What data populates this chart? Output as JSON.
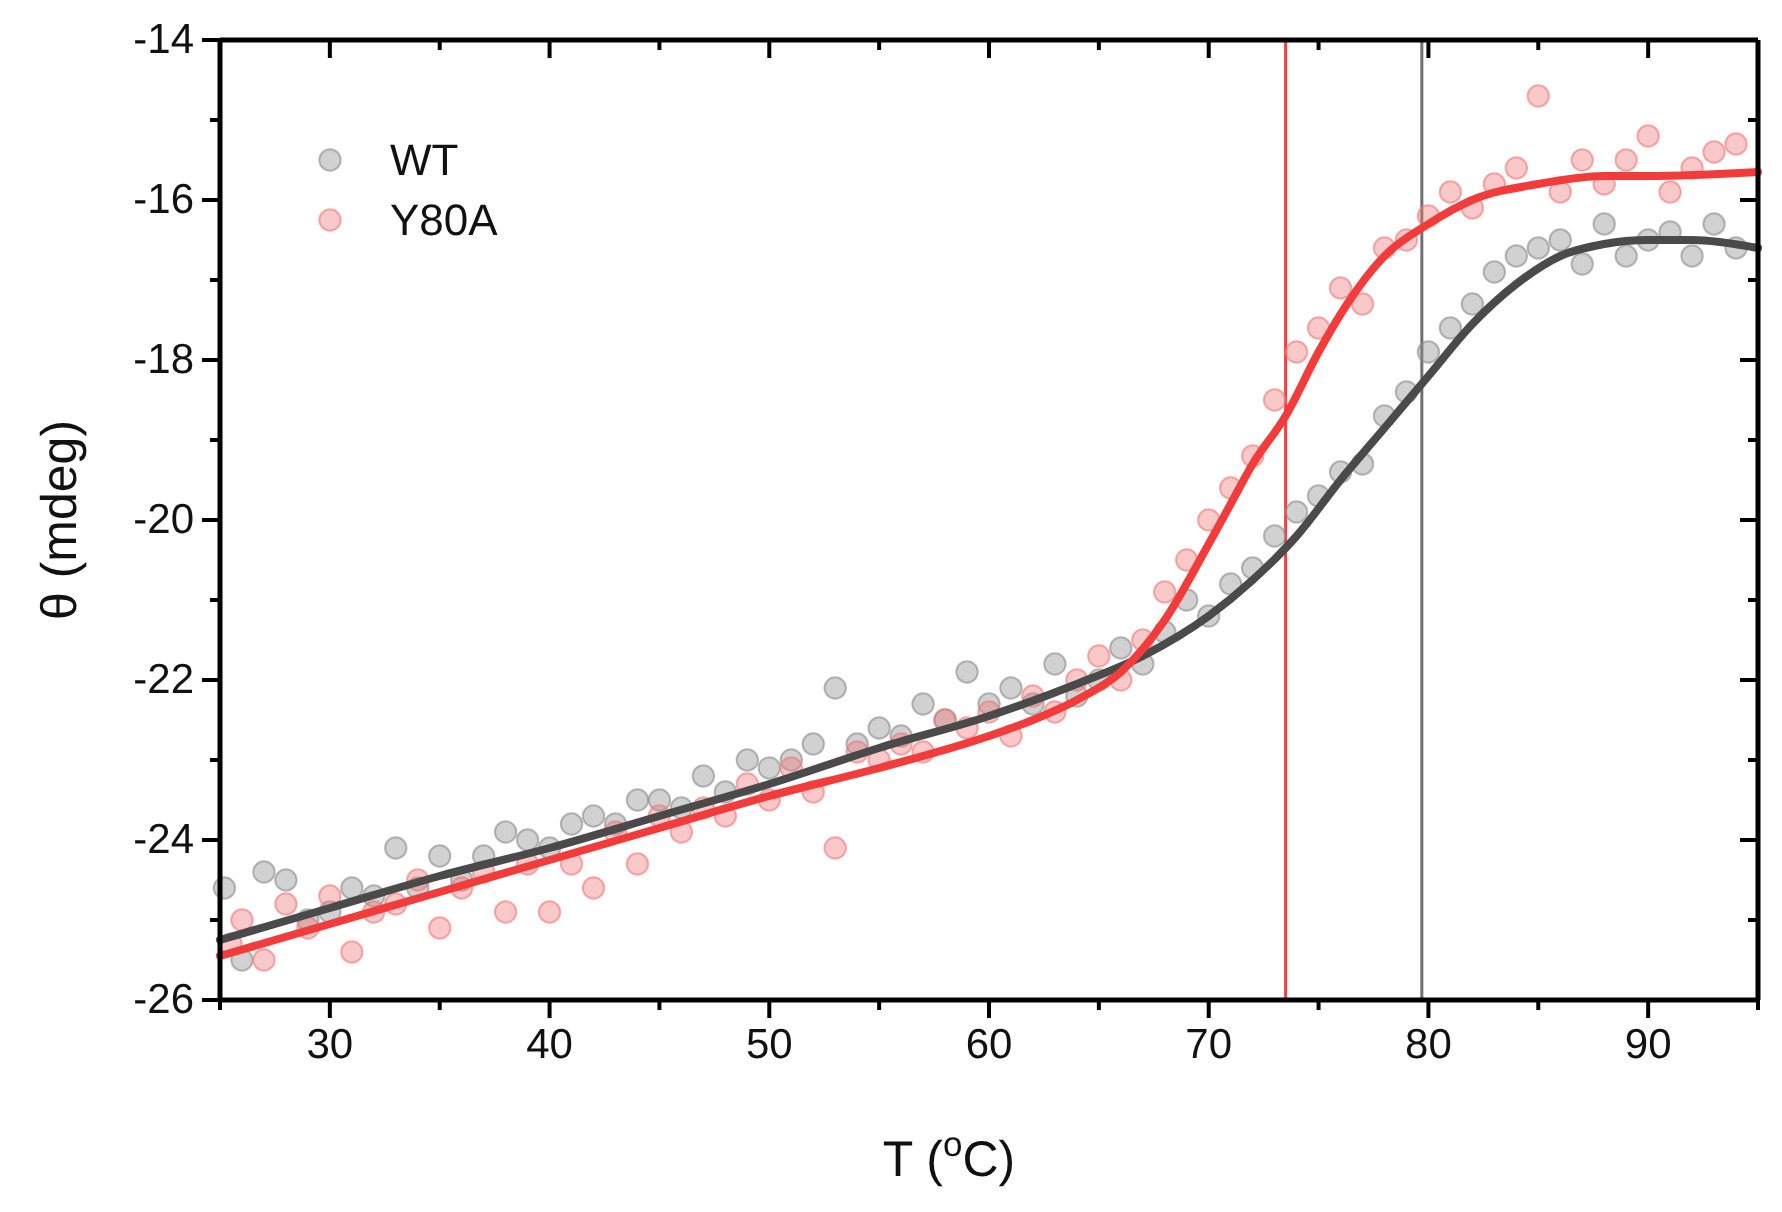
{
  "chart_data": {
    "type": "scatter",
    "xlabel": "T ($^{o}$C)",
    "ylabel": "θ (mdeg)",
    "xlim": [
      25,
      95
    ],
    "xticks": [
      {
        "value": 25,
        "label": null
      },
      30,
      {
        "value": 35,
        "label": null
      },
      40,
      {
        "value": 45,
        "label": null
      },
      50,
      {
        "value": 55,
        "label": null
      },
      60,
      {
        "value": 65,
        "label": null
      },
      70,
      {
        "value": 75,
        "label": null
      },
      80,
      {
        "value": 85,
        "label": null
      },
      90,
      {
        "value": 95,
        "label": null
      }
    ],
    "ylim": [
      -26,
      -14
    ],
    "yticks": [
      -26,
      {
        "value": -25,
        "label": null
      },
      -24,
      {
        "value": -23,
        "label": null
      },
      -22,
      {
        "value": -21,
        "label": null
      },
      -20,
      {
        "value": -19,
        "label": null
      },
      -18,
      {
        "value": -17,
        "label": null
      },
      -16,
      {
        "value": -15,
        "label": null
      },
      -14
    ],
    "legend": "top left",
    "grid": false,
    "ref_lines": [
      {
        "axis": "x",
        "value": 73.5,
        "color": "#ff3b3b"
      },
      {
        "axis": "x",
        "value": 79.7,
        "color": "#707070"
      }
    ],
    "series": [
      {
        "name": "WT",
        "marker": "circle",
        "color": "#8c8c8c",
        "x": [
          25.2,
          26,
          27,
          28,
          29,
          30,
          31,
          32,
          33,
          34,
          35,
          36,
          37,
          38,
          39,
          40,
          41,
          42,
          43,
          44,
          45,
          46,
          47,
          48,
          49,
          50,
          51,
          52,
          53,
          54,
          55,
          56,
          57,
          58,
          59,
          60,
          61,
          62,
          63,
          64,
          65,
          66,
          67,
          68,
          69,
          70,
          71,
          72,
          73,
          74,
          75,
          76,
          77,
          78,
          79,
          80,
          81,
          82,
          83,
          84,
          85,
          86,
          87,
          88,
          89,
          90,
          91,
          92,
          93,
          94
        ],
        "values": [
          -24.6,
          -25.5,
          -24.4,
          -24.5,
          -25.0,
          -24.9,
          -24.6,
          -24.7,
          -24.1,
          -24.6,
          -24.2,
          -24.5,
          -24.2,
          -23.9,
          -24.0,
          -24.1,
          -23.8,
          -23.7,
          -23.8,
          -23.5,
          -23.5,
          -23.6,
          -23.2,
          -23.4,
          -23.0,
          -23.1,
          -23.0,
          -22.8,
          -22.1,
          -22.8,
          -22.6,
          -22.7,
          -22.3,
          -22.5,
          -21.9,
          -22.3,
          -22.1,
          -22.3,
          -21.8,
          -22.2,
          -22.0,
          -21.6,
          -21.8,
          -21.4,
          -21.0,
          -21.2,
          -20.8,
          -20.6,
          -20.2,
          -19.9,
          -19.7,
          -19.4,
          -19.3,
          -18.7,
          -18.4,
          -17.9,
          -17.6,
          -17.3,
          -16.9,
          -16.7,
          -16.6,
          -16.5,
          -16.8,
          -16.3,
          -16.7,
          -16.5,
          -16.4,
          -16.7,
          -16.3,
          -16.6
        ]
      },
      {
        "name": "Y80A",
        "marker": "circle",
        "color": "#f07878",
        "x": [
          25.5,
          26,
          27,
          28,
          29,
          30,
          31,
          32,
          33,
          34,
          35,
          36,
          37,
          38,
          39,
          40,
          41,
          42,
          43,
          44,
          45,
          46,
          47,
          48,
          49,
          50,
          51,
          52,
          53,
          54,
          55,
          56,
          57,
          58,
          59,
          60,
          61,
          62,
          63,
          64,
          65,
          66,
          67,
          68,
          69,
          70,
          71,
          72,
          73,
          74,
          75,
          76,
          77,
          78,
          79,
          80,
          81,
          82,
          83,
          84,
          85,
          86,
          87,
          88,
          89,
          90,
          91,
          92,
          93,
          94
        ],
        "values": [
          -25.3,
          -25.0,
          -25.5,
          -24.8,
          -25.1,
          -24.7,
          -25.4,
          -24.9,
          -24.8,
          -24.5,
          -25.1,
          -24.6,
          -24.4,
          -24.9,
          -24.3,
          -24.9,
          -24.3,
          -24.6,
          -23.9,
          -24.3,
          -23.7,
          -23.9,
          -23.6,
          -23.7,
          -23.3,
          -23.5,
          -23.1,
          -23.4,
          -24.1,
          -22.9,
          -23.0,
          -22.8,
          -22.9,
          -22.5,
          -22.6,
          -22.4,
          -22.7,
          -22.2,
          -22.4,
          -22.0,
          -21.7,
          -22.0,
          -21.5,
          -20.9,
          -20.5,
          -20.0,
          -19.6,
          -19.2,
          -18.5,
          -17.9,
          -17.6,
          -17.1,
          -17.3,
          -16.6,
          -16.5,
          -16.2,
          -15.9,
          -16.1,
          -15.8,
          -15.6,
          -14.7,
          -15.9,
          -15.5,
          -15.8,
          -15.5,
          -15.2,
          -15.9,
          -15.6,
          -15.4,
          -15.3
        ]
      },
      {
        "type": "line",
        "marker": "none",
        "color": "#4a4a4a",
        "x": [
          25,
          30,
          35,
          40,
          45,
          50,
          55,
          60,
          64,
          67,
          70,
          72,
          74,
          76,
          78,
          80,
          82,
          84,
          86,
          88,
          90,
          92,
          95
        ],
        "values": [
          -25.25,
          -24.85,
          -24.45,
          -24.1,
          -23.7,
          -23.3,
          -22.85,
          -22.45,
          -22.05,
          -21.7,
          -21.2,
          -20.75,
          -20.2,
          -19.5,
          -18.85,
          -18.2,
          -17.55,
          -17.05,
          -16.7,
          -16.55,
          -16.5,
          -16.5,
          -16.6
        ]
      },
      {
        "type": "line",
        "marker": "none",
        "color": "#f23c3c",
        "x": [
          25,
          30,
          35,
          40,
          45,
          50,
          55,
          60,
          62,
          64,
          66,
          68,
          70,
          71,
          72,
          73.5,
          75,
          76.3,
          78,
          80,
          82,
          85,
          88,
          90,
          95
        ],
        "values": [
          -25.45,
          -25.05,
          -24.65,
          -24.25,
          -23.85,
          -23.45,
          -23.1,
          -22.7,
          -22.5,
          -22.25,
          -21.9,
          -21.25,
          -20.3,
          -19.8,
          -19.3,
          -18.7,
          -17.9,
          -17.3,
          -16.7,
          -16.3,
          -16.0,
          -15.8,
          -15.7,
          -15.7,
          -15.65
        ]
      }
    ]
  }
}
